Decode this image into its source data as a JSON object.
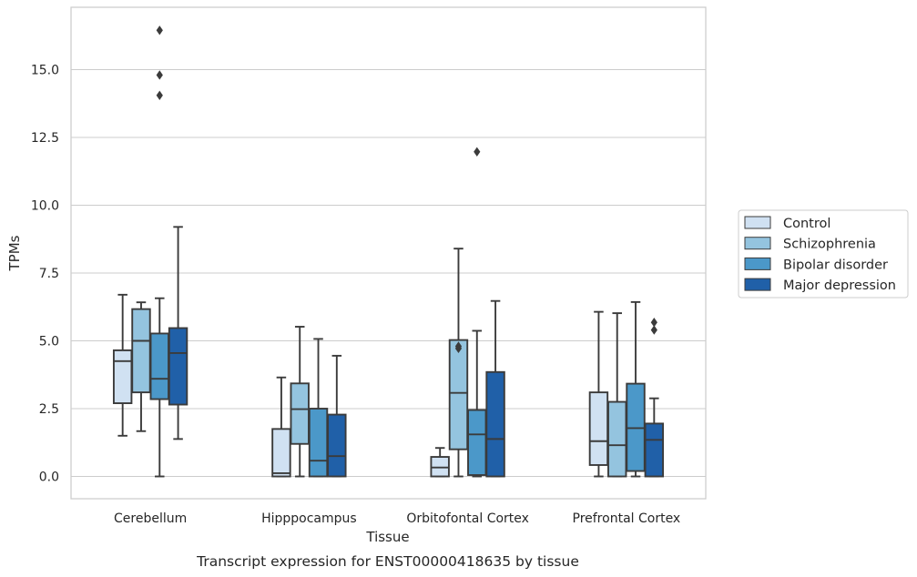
{
  "chart_data": {
    "type": "box",
    "title": "",
    "caption": "Transcript expression for ENST00000418635 by tissue",
    "xlabel": "Tissue",
    "ylabel": "TPMs",
    "ylim": [
      -0.8,
      17.5
    ],
    "yticks": [
      0.0,
      2.5,
      5.0,
      7.5,
      10.0,
      12.5,
      15.0
    ],
    "ytick_labels": [
      "0.0",
      "2.5",
      "5.0",
      "7.5",
      "10.0",
      "12.5",
      "15.0"
    ],
    "grid": "horizontal",
    "legend_position": "right",
    "categories": [
      "Cerebellum",
      "Hipppocampus",
      "Orbitofontal Cortex",
      "Prefrontal Cortex"
    ],
    "series": [
      {
        "name": "Control",
        "color": "#d0e1f2",
        "boxes": [
          {
            "whisker_low": 1.5,
            "q1": 2.7,
            "median": 4.25,
            "q3": 4.65,
            "whisker_high": 6.7,
            "outliers": []
          },
          {
            "whisker_low": 0.0,
            "q1": 0.0,
            "median": 0.12,
            "q3": 1.75,
            "whisker_high": 3.65,
            "outliers": []
          },
          {
            "whisker_low": 0.0,
            "q1": 0.0,
            "median": 0.33,
            "q3": 0.72,
            "whisker_high": 1.05,
            "outliers": []
          },
          {
            "whisker_low": 0.0,
            "q1": 0.42,
            "median": 1.3,
            "q3": 3.1,
            "whisker_high": 6.07,
            "outliers": []
          }
        ]
      },
      {
        "name": "Schizophrenia",
        "color": "#94c4df",
        "boxes": [
          {
            "whisker_low": 1.67,
            "q1": 3.1,
            "median": 5.0,
            "q3": 6.17,
            "whisker_high": 6.42,
            "outliers": []
          },
          {
            "whisker_low": 0.0,
            "q1": 1.2,
            "median": 2.48,
            "q3": 3.43,
            "whisker_high": 5.52,
            "outliers": []
          },
          {
            "whisker_low": 0.0,
            "q1": 1.0,
            "median": 3.08,
            "q3": 5.03,
            "whisker_high": 8.4,
            "outliers": [
              4.72,
              4.8
            ]
          },
          {
            "whisker_low": 0.0,
            "q1": 0.0,
            "median": 1.15,
            "q3": 2.75,
            "whisker_high": 6.02,
            "outliers": []
          }
        ]
      },
      {
        "name": "Bipolar disorder",
        "color": "#4b98c9",
        "boxes": [
          {
            "whisker_low": 0.0,
            "q1": 2.85,
            "median": 3.6,
            "q3": 5.27,
            "whisker_high": 6.57,
            "outliers": [
              14.05,
              14.8,
              16.45
            ]
          },
          {
            "whisker_low": 0.0,
            "q1": 0.0,
            "median": 0.58,
            "q3": 2.5,
            "whisker_high": 5.07,
            "outliers": []
          },
          {
            "whisker_low": 0.0,
            "q1": 0.05,
            "median": 1.55,
            "q3": 2.45,
            "whisker_high": 5.37,
            "outliers": [
              11.97
            ]
          },
          {
            "whisker_low": 0.0,
            "q1": 0.2,
            "median": 1.78,
            "q3": 3.42,
            "whisker_high": 6.43,
            "outliers": []
          }
        ]
      },
      {
        "name": "Major depression",
        "color": "#2060a8",
        "boxes": [
          {
            "whisker_low": 1.38,
            "q1": 2.65,
            "median": 4.55,
            "q3": 5.47,
            "whisker_high": 9.2,
            "outliers": []
          },
          {
            "whisker_low": 0.0,
            "q1": 0.0,
            "median": 0.75,
            "q3": 2.28,
            "whisker_high": 4.45,
            "outliers": []
          },
          {
            "whisker_low": 0.0,
            "q1": 0.0,
            "median": 1.38,
            "q3": 3.85,
            "whisker_high": 6.47,
            "outliers": []
          },
          {
            "whisker_low": 0.0,
            "q1": 0.0,
            "median": 1.35,
            "q3": 1.95,
            "whisker_high": 2.88,
            "outliers": [
              5.4,
              5.68
            ]
          }
        ]
      }
    ]
  }
}
